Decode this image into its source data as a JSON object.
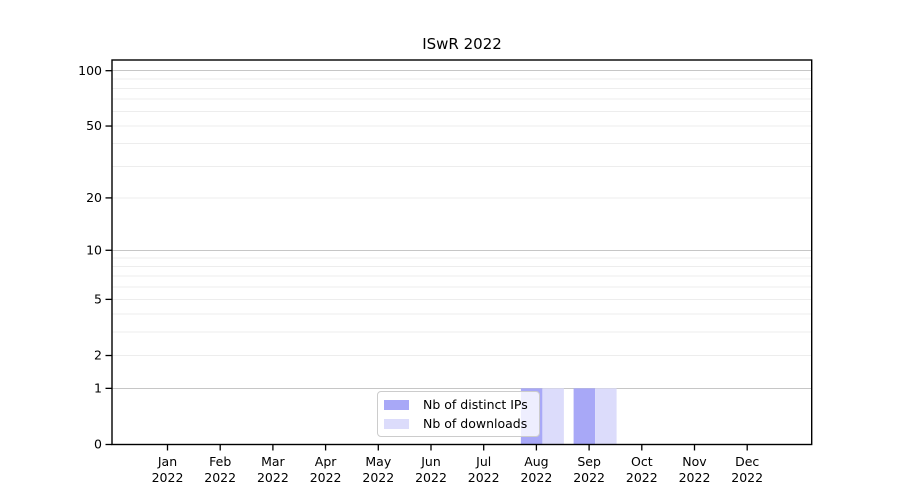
{
  "chart_data": {
    "type": "bar",
    "title": "ISwR 2022",
    "categories": [
      "Jan 2022",
      "Feb 2022",
      "Mar 2022",
      "Apr 2022",
      "May 2022",
      "Jun 2022",
      "Jul 2022",
      "Aug 2022",
      "Sep 2022",
      "Oct 2022",
      "Nov 2022",
      "Dec 2022"
    ],
    "x_tick_month": [
      "Jan",
      "Feb",
      "Mar",
      "Apr",
      "May",
      "Jun",
      "Jul",
      "Aug",
      "Sep",
      "Oct",
      "Nov",
      "Dec"
    ],
    "x_tick_year": "2022",
    "series": [
      {
        "name": "Nb of distinct IPs",
        "color": "#a8a8f7",
        "values": [
          0,
          0,
          0,
          0,
          0,
          0,
          0,
          1,
          1,
          0,
          0,
          0
        ]
      },
      {
        "name": "Nb of downloads",
        "color": "#dcdcfb",
        "values": [
          0,
          0,
          0,
          0,
          0,
          0,
          0,
          1,
          1,
          0,
          0,
          0
        ]
      }
    ],
    "y_axis": {
      "scale": "log1p",
      "tick_values": [
        100,
        50,
        20,
        10,
        5,
        2,
        1,
        0
      ],
      "major_gridlines": [
        1,
        10,
        100
      ],
      "minor_gridlines": [
        2,
        3,
        4,
        5,
        6,
        7,
        8,
        9,
        20,
        30,
        40,
        50,
        60,
        70,
        80,
        90
      ],
      "ylim": [
        0,
        110
      ]
    },
    "legend": {
      "position": "lower center"
    },
    "grid": true,
    "colors": {
      "bar_distinct_ips": "#a8a8f7",
      "bar_downloads": "#dcdcfb",
      "grid_major": "#c6c6c6",
      "grid_minor": "#ededed",
      "spine": "#000000",
      "tick": "#000000",
      "text": "#000000",
      "legend_border": "#cccccc"
    }
  }
}
